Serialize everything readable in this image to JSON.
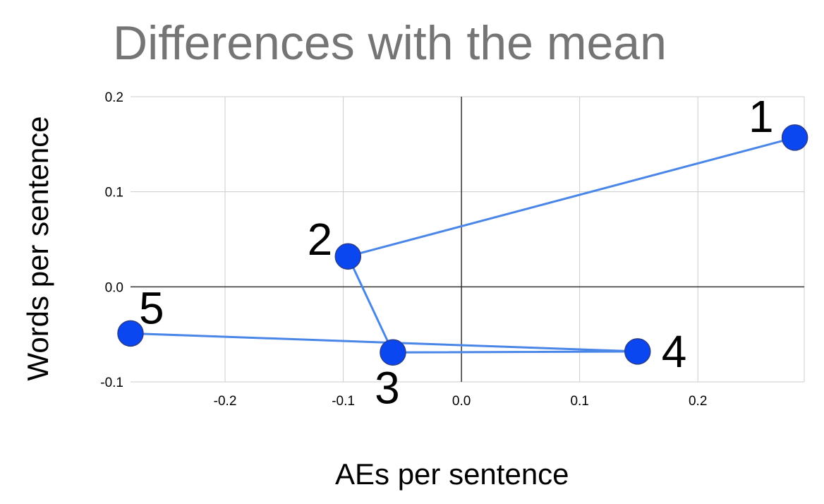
{
  "chart_data": {
    "type": "line",
    "title": "Differences with the mean",
    "xlabel": "AEs per sentence",
    "ylabel": "Words per sentence",
    "xlim": [
      -0.28,
      0.29
    ],
    "ylim": [
      -0.1,
      0.2
    ],
    "x_ticks": [
      -0.2,
      -0.1,
      0.0,
      0.1,
      0.2
    ],
    "x_tick_labels": [
      "-0.2",
      "-0.1",
      "0.0",
      "0.1",
      "0.2"
    ],
    "y_ticks": [
      -0.1,
      0.0,
      0.1,
      0.2
    ],
    "y_tick_labels": [
      "-0.1",
      "0.0",
      "0.1",
      "0.2"
    ],
    "grid": true,
    "legend": "none",
    "line_color": "#4a86e8",
    "marker_color": "#0a47f0",
    "marker_edge_color": "#2a3c8a",
    "points": [
      {
        "label": "1",
        "x": 0.282,
        "y": 0.157
      },
      {
        "label": "2",
        "x": -0.096,
        "y": 0.032
      },
      {
        "label": "3",
        "x": -0.058,
        "y": -0.069
      },
      {
        "label": "4",
        "x": 0.149,
        "y": -0.068
      },
      {
        "label": "5",
        "x": -0.28,
        "y": -0.049
      }
    ]
  }
}
